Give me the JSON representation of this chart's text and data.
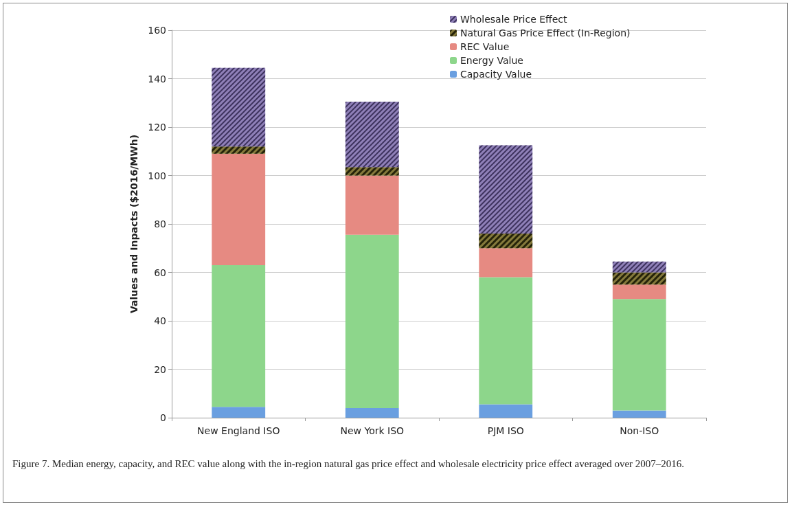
{
  "chart_data": {
    "type": "bar",
    "stacked": true,
    "ylabel": "Values and Inpacts ($2016/MWh)",
    "categories": [
      "New England ISO",
      "New York ISO",
      "PJM ISO",
      "Non-ISO"
    ],
    "series": [
      {
        "name": "Capacity Value",
        "color": "#6a9fe0",
        "values": [
          4.5,
          4,
          5.5,
          3
        ]
      },
      {
        "name": "Energy Value",
        "color": "#8dd68b",
        "values": [
          58.5,
          71.5,
          52.5,
          46
        ]
      },
      {
        "name": "REC Value",
        "color": "#e68a82",
        "values": [
          46,
          24.5,
          12,
          6
        ]
      },
      {
        "name": "Natural Gas Price Effect (In-Region)",
        "color": "#857a3c",
        "values": [
          3,
          3.5,
          6,
          5
        ]
      },
      {
        "name": "Wholesale Price Effect",
        "color": "#8f80b8",
        "values": [
          32.5,
          27,
          36.5,
          4.5
        ]
      }
    ],
    "ylim": [
      0,
      160
    ],
    "yticks": [
      0,
      20,
      40,
      60,
      80,
      100,
      120,
      140,
      160
    ],
    "grid": "y",
    "legend": "top right",
    "annotations": [
      "Figure 7. Median energy, capacity, and REC value along with the in-region natural gas price effect and wholesale electricity price effect averaged over 2007–2016."
    ]
  }
}
